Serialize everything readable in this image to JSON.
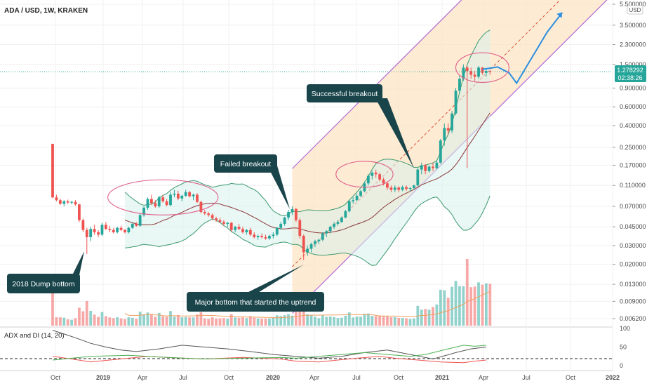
{
  "header": {
    "symbol": "ADA / USD, 1W, KRAKEN"
  },
  "price_axis": {
    "currency": "USD",
    "last_price": "1.278292",
    "countdown": "02:38:26"
  },
  "colors": {
    "up": "#26a69a",
    "down": "#ef5350",
    "channel_line": "#b46ad6",
    "channel_fill": "#fde4c4",
    "band": "#3d9a6e",
    "band_fill": "#d7f0ec",
    "basis": "#8b3a3a",
    "projection": "#2a8fe0",
    "circle": "#e0608a",
    "callout": "#18444a",
    "midline": "#d8553a"
  },
  "chart_data": [
    {
      "type": "candlestick",
      "title": "ADA / USD, 1W, KRAKEN",
      "yscale": "log",
      "ylim": [
        0.0055,
        5.5
      ],
      "y_ticks": [
        "5.500000",
        "3.500000",
        "2.300000",
        "1.500000",
        "0.900000",
        "0.600000",
        "0.400000",
        "0.250000",
        "0.170000",
        "0.110000",
        "0.070000",
        "0.045000",
        "0.030000",
        "0.020000",
        "0.013000",
        "0.009000",
        "0.006200"
      ],
      "x_ticks": [
        "Oct",
        "2019",
        "Apr",
        "Jul",
        "Oct",
        "2020",
        "Apr",
        "Jul",
        "Oct",
        "2021",
        "Apr",
        "Jul",
        "Oct",
        "2022"
      ],
      "series": [
        {
          "name": "price",
          "values": [
            [
              0.27,
              0.27,
              0.083,
              0.085
            ],
            [
              0.085,
              0.09,
              0.078,
              0.08
            ],
            [
              0.08,
              0.083,
              0.072,
              0.074
            ],
            [
              0.074,
              0.08,
              0.07,
              0.078
            ],
            [
              0.078,
              0.081,
              0.074,
              0.076
            ],
            [
              0.076,
              0.079,
              0.073,
              0.077
            ],
            [
              0.077,
              0.08,
              0.071,
              0.073
            ],
            [
              0.073,
              0.074,
              0.05,
              0.052
            ],
            [
              0.052,
              0.054,
              0.04,
              0.042
            ],
            [
              0.042,
              0.044,
              0.025,
              0.036
            ],
            [
              0.036,
              0.045,
              0.033,
              0.043
            ],
            [
              0.043,
              0.047,
              0.038,
              0.04
            ],
            [
              0.04,
              0.042,
              0.036,
              0.038
            ],
            [
              0.038,
              0.049,
              0.037,
              0.047
            ],
            [
              0.047,
              0.05,
              0.042,
              0.043
            ],
            [
              0.043,
              0.046,
              0.04,
              0.042
            ],
            [
              0.042,
              0.044,
              0.039,
              0.04
            ],
            [
              0.04,
              0.045,
              0.039,
              0.044
            ],
            [
              0.044,
              0.046,
              0.041,
              0.042
            ],
            [
              0.042,
              0.043,
              0.039,
              0.04
            ],
            [
              0.04,
              0.045,
              0.039,
              0.044
            ],
            [
              0.044,
              0.049,
              0.043,
              0.048
            ],
            [
              0.048,
              0.05,
              0.045,
              0.046
            ],
            [
              0.046,
              0.06,
              0.045,
              0.058
            ],
            [
              0.058,
              0.07,
              0.056,
              0.068
            ],
            [
              0.068,
              0.085,
              0.065,
              0.082
            ],
            [
              0.082,
              0.09,
              0.072,
              0.075
            ],
            [
              0.075,
              0.08,
              0.068,
              0.07
            ],
            [
              0.07,
              0.088,
              0.068,
              0.085
            ],
            [
              0.085,
              0.09,
              0.076,
              0.078
            ],
            [
              0.078,
              0.082,
              0.07,
              0.072
            ],
            [
              0.072,
              0.095,
              0.07,
              0.09
            ],
            [
              0.09,
              0.1,
              0.085,
              0.092
            ],
            [
              0.092,
              0.098,
              0.08,
              0.083
            ],
            [
              0.083,
              0.09,
              0.078,
              0.088
            ],
            [
              0.088,
              0.1,
              0.086,
              0.095
            ],
            [
              0.095,
              0.098,
              0.085,
              0.087
            ],
            [
              0.087,
              0.092,
              0.08,
              0.09
            ],
            [
              0.09,
              0.093,
              0.075,
              0.077
            ],
            [
              0.077,
              0.079,
              0.06,
              0.062
            ],
            [
              0.062,
              0.065,
              0.058,
              0.06
            ],
            [
              0.06,
              0.062,
              0.056,
              0.058
            ],
            [
              0.058,
              0.06,
              0.052,
              0.054
            ],
            [
              0.054,
              0.056,
              0.05,
              0.052
            ],
            [
              0.052,
              0.055,
              0.049,
              0.05
            ],
            [
              0.05,
              0.052,
              0.046,
              0.048
            ],
            [
              0.048,
              0.05,
              0.045,
              0.049
            ],
            [
              0.049,
              0.05,
              0.04,
              0.042
            ],
            [
              0.042,
              0.046,
              0.04,
              0.045
            ],
            [
              0.045,
              0.048,
              0.042,
              0.043
            ],
            [
              0.043,
              0.045,
              0.039,
              0.04
            ],
            [
              0.04,
              0.043,
              0.038,
              0.042
            ],
            [
              0.042,
              0.044,
              0.037,
              0.038
            ],
            [
              0.038,
              0.04,
              0.035,
              0.036
            ],
            [
              0.036,
              0.038,
              0.034,
              0.037
            ],
            [
              0.037,
              0.039,
              0.035,
              0.036
            ],
            [
              0.036,
              0.038,
              0.034,
              0.035
            ],
            [
              0.035,
              0.038,
              0.034,
              0.037
            ],
            [
              0.037,
              0.04,
              0.035,
              0.038
            ],
            [
              0.038,
              0.045,
              0.037,
              0.044
            ],
            [
              0.044,
              0.05,
              0.042,
              0.048
            ],
            [
              0.048,
              0.056,
              0.046,
              0.055
            ],
            [
              0.055,
              0.065,
              0.052,
              0.062
            ],
            [
              0.062,
              0.07,
              0.058,
              0.066
            ],
            [
              0.066,
              0.068,
              0.05,
              0.052
            ],
            [
              0.052,
              0.054,
              0.035,
              0.037
            ],
            [
              0.037,
              0.038,
              0.022,
              0.026
            ],
            [
              0.026,
              0.03,
              0.024,
              0.028
            ],
            [
              0.028,
              0.032,
              0.026,
              0.031
            ],
            [
              0.031,
              0.034,
              0.029,
              0.033
            ],
            [
              0.033,
              0.035,
              0.031,
              0.034
            ],
            [
              0.034,
              0.04,
              0.033,
              0.039
            ],
            [
              0.039,
              0.042,
              0.036,
              0.041
            ],
            [
              0.041,
              0.046,
              0.039,
              0.045
            ],
            [
              0.045,
              0.05,
              0.043,
              0.048
            ],
            [
              0.048,
              0.052,
              0.046,
              0.05
            ],
            [
              0.05,
              0.056,
              0.049,
              0.055
            ],
            [
              0.055,
              0.065,
              0.054,
              0.063
            ],
            [
              0.063,
              0.08,
              0.061,
              0.078
            ],
            [
              0.078,
              0.085,
              0.074,
              0.08
            ],
            [
              0.08,
              0.092,
              0.078,
              0.088
            ],
            [
              0.088,
              0.1,
              0.085,
              0.097
            ],
            [
              0.097,
              0.12,
              0.095,
              0.115
            ],
            [
              0.115,
              0.14,
              0.11,
              0.135
            ],
            [
              0.135,
              0.15,
              0.125,
              0.145
            ],
            [
              0.145,
              0.155,
              0.13,
              0.14
            ],
            [
              0.14,
              0.145,
              0.12,
              0.125
            ],
            [
              0.125,
              0.13,
              0.11,
              0.115
            ],
            [
              0.115,
              0.12,
              0.1,
              0.105
            ],
            [
              0.105,
              0.11,
              0.095,
              0.1
            ],
            [
              0.1,
              0.11,
              0.095,
              0.105
            ],
            [
              0.105,
              0.108,
              0.095,
              0.1
            ],
            [
              0.1,
              0.11,
              0.097,
              0.106
            ],
            [
              0.106,
              0.11,
              0.098,
              0.102
            ],
            [
              0.102,
              0.106,
              0.096,
              0.104
            ],
            [
              0.104,
              0.112,
              0.1,
              0.11
            ],
            [
              0.11,
              0.16,
              0.108,
              0.155
            ],
            [
              0.155,
              0.18,
              0.14,
              0.17
            ],
            [
              0.17,
              0.175,
              0.14,
              0.15
            ],
            [
              0.15,
              0.17,
              0.145,
              0.165
            ],
            [
              0.165,
              0.18,
              0.15,
              0.16
            ],
            [
              0.16,
              0.19,
              0.155,
              0.18
            ],
            [
              0.18,
              0.3,
              0.175,
              0.29
            ],
            [
              0.29,
              0.42,
              0.26,
              0.38
            ],
            [
              0.38,
              0.42,
              0.33,
              0.36
            ],
            [
              0.36,
              0.55,
              0.34,
              0.52
            ],
            [
              0.52,
              0.9,
              0.5,
              0.85
            ],
            [
              0.85,
              1.2,
              0.8,
              1.1
            ],
            [
              1.1,
              1.5,
              1.05,
              1.4
            ],
            [
              1.4,
              1.45,
              0.16,
              1.3
            ],
            [
              1.3,
              1.4,
              1.1,
              1.2
            ],
            [
              1.2,
              1.3,
              1.05,
              1.15
            ],
            [
              1.15,
              1.45,
              1.1,
              1.4
            ],
            [
              1.4,
              1.42,
              1.2,
              1.25
            ],
            [
              1.25,
              1.35,
              1.15,
              1.3
            ],
            [
              1.3,
              1.33,
              1.2,
              1.278
            ]
          ]
        },
        {
          "name": "",
          "values": [
            [
              0,
              0.19
            ],
            [
              16,
              0.19
            ],
            [
              30,
              0.2
            ],
            [
              50,
              0.23
            ],
            [
              60,
              0.22
            ],
            [
              68,
              0.2
            ],
            [
              80,
              0.22
            ],
            [
              90,
              0.21
            ],
            [
              100,
              0.22
            ],
            [
              111,
              0.23
            ]
          ]
        }
      ]
    },
    {
      "type": "line",
      "title": "ADX and DI (14, 20)",
      "ylim": [
        0,
        100
      ],
      "y_ticks": [
        "100",
        "50",
        "0"
      ],
      "threshold": 20,
      "series": [
        {
          "name": "",
          "values": [
            [
              0,
              95
            ],
            [
              3,
              85
            ],
            [
              6,
              75
            ],
            [
              10,
              60
            ],
            [
              14,
              50
            ],
            [
              18,
              42
            ],
            [
              22,
              38
            ],
            [
              28,
              45
            ],
            [
              34,
              55
            ],
            [
              40,
              50
            ],
            [
              46,
              45
            ],
            [
              52,
              38
            ],
            [
              58,
              30
            ],
            [
              64,
              25
            ],
            [
              70,
              20
            ],
            [
              76,
              25
            ],
            [
              82,
              35
            ],
            [
              88,
              42
            ],
            [
              94,
              30
            ],
            [
              100,
              18
            ],
            [
              106,
              35
            ],
            [
              110,
              45
            ],
            [
              114,
              50
            ]
          ]
        },
        {
          "name": "",
          "values": [
            [
              0,
              25
            ],
            [
              5,
              18
            ],
            [
              10,
              10
            ],
            [
              15,
              15
            ],
            [
              20,
              20
            ],
            [
              25,
              25
            ],
            [
              30,
              22
            ],
            [
              40,
              18
            ],
            [
              50,
              22
            ],
            [
              60,
              18
            ],
            [
              64,
              12
            ],
            [
              70,
              10
            ],
            [
              75,
              15
            ],
            [
              80,
              20
            ],
            [
              86,
              25
            ],
            [
              90,
              20
            ],
            [
              96,
              15
            ],
            [
              102,
              10
            ],
            [
              108,
              8
            ],
            [
              111,
              12
            ],
            [
              114,
              15
            ]
          ]
        },
        {
          "name": "",
          "values": [
            [
              0,
              15
            ],
            [
              10,
              25
            ],
            [
              20,
              28
            ],
            [
              30,
              22
            ],
            [
              40,
              18
            ],
            [
              50,
              20
            ],
            [
              60,
              22
            ],
            [
              64,
              20
            ],
            [
              70,
              25
            ],
            [
              76,
              30
            ],
            [
              82,
              35
            ],
            [
              88,
              30
            ],
            [
              94,
              25
            ],
            [
              98,
              30
            ],
            [
              104,
              45
            ],
            [
              108,
              55
            ],
            [
              111,
              52
            ],
            [
              114,
              55
            ]
          ]
        }
      ]
    }
  ],
  "annotations": {
    "successful_breakout": "Successful breakout",
    "failed_breakout": "Failed breakout",
    "dump_bottom": "2018 Dump bottom",
    "major_bottom": "Major bottom that started the uptrend"
  },
  "indicator": {
    "title": "ADX and DI (14, 20)"
  }
}
